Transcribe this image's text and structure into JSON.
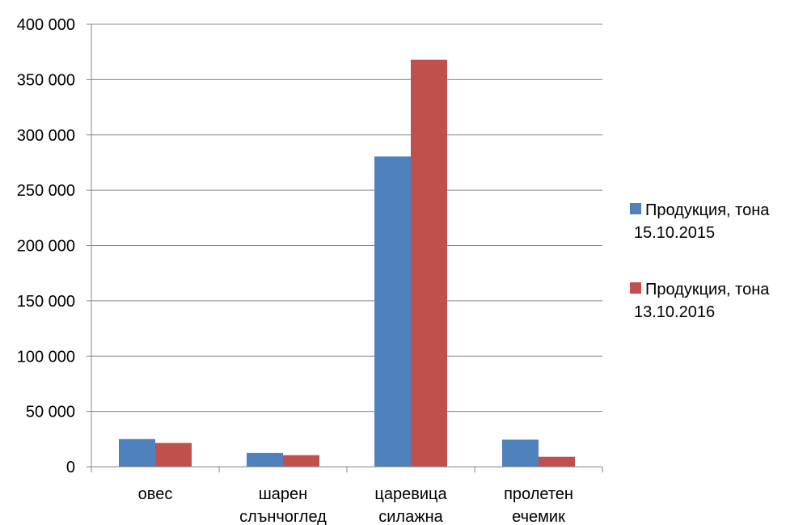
{
  "chart_data": {
    "type": "bar",
    "title": "",
    "xlabel": "",
    "ylabel": "",
    "ylim": [
      0,
      400000
    ],
    "yticks": [
      0,
      50000,
      100000,
      150000,
      200000,
      250000,
      300000,
      350000,
      400000
    ],
    "ytick_labels": [
      "0",
      "50 000",
      "100 000",
      "150 000",
      "200 000",
      "250 000",
      "300 000",
      "350 000",
      "400 000"
    ],
    "grid": true,
    "legend_position": "right",
    "categories": [
      [
        "овес"
      ],
      [
        "шарен",
        "слънчоглед"
      ],
      [
        "царевица",
        "силажна"
      ],
      [
        "пролетен",
        "ечемик"
      ]
    ],
    "series": [
      {
        "name": [
          "Продукция, тона",
          "15.10.2015"
        ],
        "color": "#4f81bd",
        "values": [
          25000,
          12500,
          280500,
          24500
        ]
      },
      {
        "name": [
          "Продукция, тона",
          "13.10.2016"
        ],
        "color": "#c0504d",
        "values": [
          21500,
          10500,
          368000,
          9000
        ]
      }
    ]
  }
}
